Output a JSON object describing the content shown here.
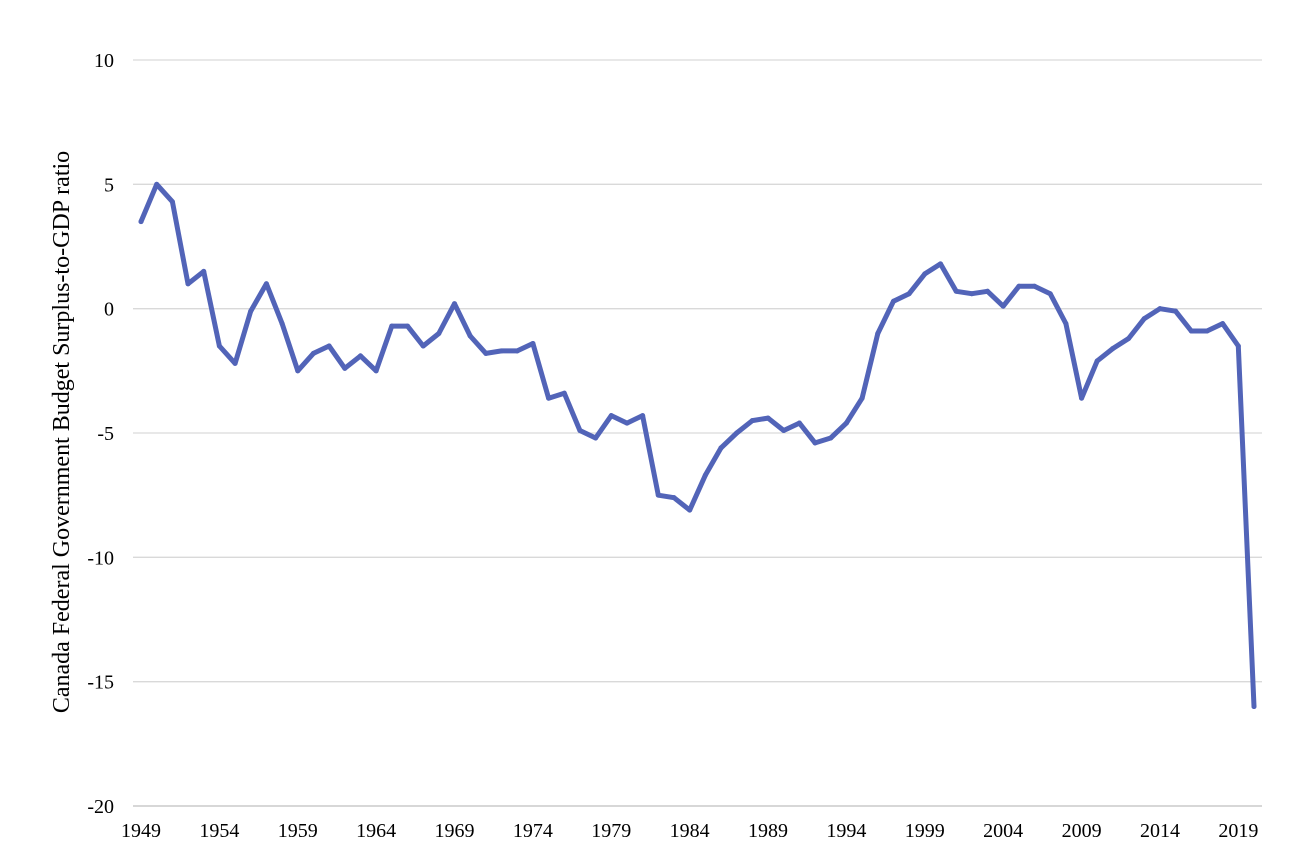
{
  "chart_data": {
    "type": "line",
    "title": "",
    "xlabel": "",
    "ylabel": "Canada Federal Government Budget Surplus-to-GDP ratio",
    "ylim": [
      -20,
      10
    ],
    "yticks": [
      10,
      5,
      0,
      -5,
      -10,
      -15,
      -20
    ],
    "xticks": [
      1949,
      1954,
      1959,
      1964,
      1969,
      1974,
      1979,
      1984,
      1989,
      1994,
      1999,
      2004,
      2009,
      2014,
      2019
    ],
    "grid": "horizontal",
    "legend": "none",
    "line_color": "#5264B8",
    "x": [
      1949,
      1950,
      1951,
      1952,
      1953,
      1954,
      1955,
      1956,
      1957,
      1958,
      1959,
      1960,
      1961,
      1962,
      1963,
      1964,
      1965,
      1966,
      1967,
      1968,
      1969,
      1970,
      1971,
      1972,
      1973,
      1974,
      1975,
      1976,
      1977,
      1978,
      1979,
      1980,
      1981,
      1982,
      1983,
      1984,
      1985,
      1986,
      1987,
      1988,
      1989,
      1990,
      1991,
      1992,
      1993,
      1994,
      1995,
      1996,
      1997,
      1998,
      1999,
      2000,
      2001,
      2002,
      2003,
      2004,
      2005,
      2006,
      2007,
      2008,
      2009,
      2010,
      2011,
      2012,
      2013,
      2014,
      2015,
      2016,
      2017,
      2018,
      2019,
      2020
    ],
    "series": [
      {
        "values": [
          3.5,
          5.0,
          4.3,
          1.0,
          1.5,
          -1.5,
          -2.2,
          -0.1,
          1.0,
          -0.6,
          -2.5,
          -1.8,
          -1.5,
          -2.4,
          -1.9,
          -2.5,
          -0.7,
          -0.7,
          -1.5,
          -1.0,
          0.2,
          -1.1,
          -1.8,
          -1.7,
          -1.7,
          -1.4,
          -3.6,
          -3.4,
          -4.9,
          -5.2,
          -4.3,
          -4.6,
          -4.3,
          -7.5,
          -7.6,
          -8.1,
          -6.7,
          -5.6,
          -5.0,
          -4.5,
          -4.4,
          -4.9,
          -4.6,
          -5.4,
          -5.2,
          -4.6,
          -3.6,
          -1.0,
          0.3,
          0.6,
          1.4,
          1.8,
          0.7,
          0.6,
          0.7,
          0.1,
          0.9,
          0.9,
          0.6,
          -0.6,
          -3.6,
          -2.1,
          -1.6,
          -1.2,
          -0.4,
          0.0,
          -0.1,
          -0.9,
          -0.9,
          -0.6,
          -1.5,
          -16.0
        ]
      }
    ]
  }
}
